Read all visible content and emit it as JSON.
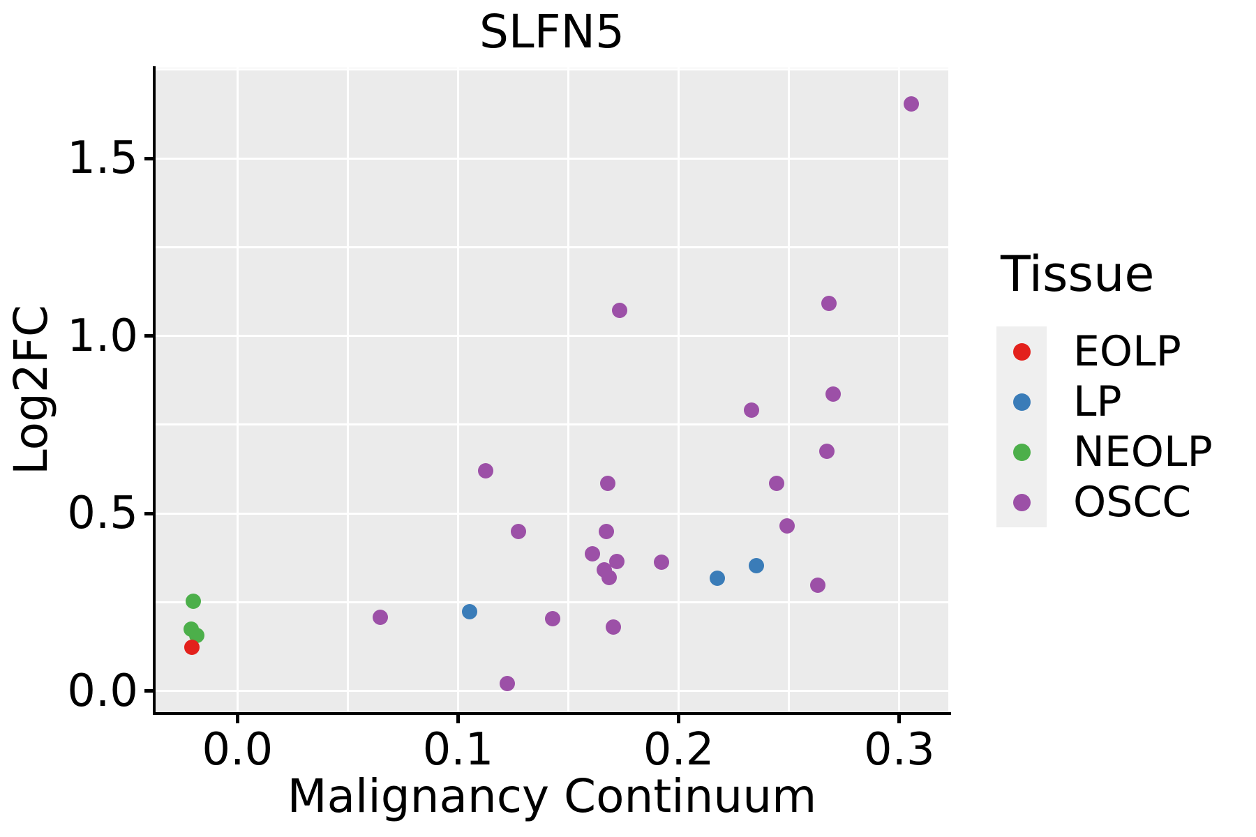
{
  "title": "SLFN5",
  "axes": {
    "x": {
      "label": "Malignancy Continuum",
      "range": [
        -0.0371,
        0.3222
      ],
      "ticks": [
        {
          "v": 0.0,
          "label": "0.0"
        },
        {
          "v": 0.1,
          "label": "0.1"
        },
        {
          "v": 0.2,
          "label": "0.2"
        },
        {
          "v": 0.3,
          "label": "0.3"
        }
      ],
      "grid": [
        0.0,
        0.05,
        0.1,
        0.15,
        0.2,
        0.25,
        0.3
      ]
    },
    "y": {
      "label": "Log2FC",
      "range": [
        -0.0595,
        1.7557
      ],
      "ticks": [
        {
          "v": 0.0,
          "label": "0.0"
        },
        {
          "v": 0.5,
          "label": "0.5"
        },
        {
          "v": 1.0,
          "label": "1.0"
        },
        {
          "v": 1.5,
          "label": "1.5"
        }
      ],
      "grid": [
        0.0,
        0.25,
        0.5,
        0.75,
        1.0,
        1.25,
        1.5,
        1.75
      ]
    }
  },
  "legend": {
    "title": "Tissue",
    "items": [
      {
        "label": "EOLP",
        "color": "#E3211C"
      },
      {
        "label": "LP",
        "color": "#3A7CB8"
      },
      {
        "label": "NEOLP",
        "color": "#4CAF4A"
      },
      {
        "label": "OSCC",
        "color": "#9C50A7"
      }
    ]
  },
  "colors": {
    "panel_background": "#EBEBEB",
    "grid": "#FFFFFF",
    "axis": "#000000",
    "legend_key_background": "#EFEFEF"
  },
  "chart_data": {
    "type": "scatter",
    "title": "SLFN5",
    "xlabel": "Malignancy Continuum",
    "ylabel": "Log2FC",
    "xlim": [
      -0.0371,
      0.3222
    ],
    "ylim": [
      -0.0595,
      1.7557
    ],
    "grid": "on",
    "legend_position": "right",
    "series": [
      {
        "name": "OSCC",
        "color": "#9C50A7",
        "points": [
          [
            0.3055,
            1.653
          ],
          [
            0.2681,
            1.092
          ],
          [
            0.1733,
            1.072
          ],
          [
            0.27,
            0.836
          ],
          [
            0.2329,
            0.791
          ],
          [
            0.2673,
            0.675
          ],
          [
            0.1125,
            0.621
          ],
          [
            0.2445,
            0.584
          ],
          [
            0.1678,
            0.584
          ],
          [
            0.2492,
            0.466
          ],
          [
            0.1671,
            0.45
          ],
          [
            0.1274,
            0.449
          ],
          [
            0.161,
            0.386
          ],
          [
            0.172,
            0.365
          ],
          [
            0.1921,
            0.363
          ],
          [
            0.1663,
            0.341
          ],
          [
            0.1686,
            0.319
          ],
          [
            0.2631,
            0.299
          ],
          [
            0.0646,
            0.208
          ],
          [
            0.143,
            0.204
          ],
          [
            0.1705,
            0.18
          ],
          [
            0.1223,
            0.022
          ]
        ]
      },
      {
        "name": "NEOLP",
        "color": "#4CAF4A",
        "points": [
          [
            -0.02,
            0.252
          ],
          [
            -0.021,
            0.175
          ],
          [
            -0.0185,
            0.156
          ]
        ]
      },
      {
        "name": "LP",
        "color": "#3A7CB8",
        "points": [
          [
            0.1052,
            0.223
          ],
          [
            0.2174,
            0.318
          ],
          [
            0.2352,
            0.354
          ]
        ]
      },
      {
        "name": "EOLP",
        "color": "#E3211C",
        "points": [
          [
            -0.0205,
            0.123
          ]
        ]
      }
    ]
  }
}
